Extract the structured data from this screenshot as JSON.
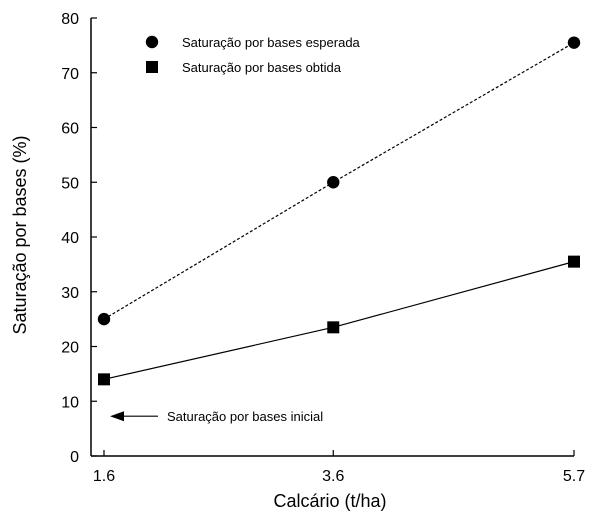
{
  "chart_data": {
    "type": "line",
    "title": "",
    "xlabel": "Calcário (t/ha)",
    "ylabel": "Saturação por bases (%)",
    "x": [
      1.6,
      3.6,
      5.7
    ],
    "x_tick_labels": [
      "1.6",
      "3.6",
      "5.7"
    ],
    "xlim": [
      1.6,
      5.7
    ],
    "ylim": [
      0,
      80
    ],
    "y_ticks": [
      0,
      10,
      20,
      30,
      40,
      50,
      60,
      70,
      80
    ],
    "y_tick_labels": [
      "0",
      "10",
      "20",
      "30",
      "40",
      "50",
      "60",
      "70",
      "80"
    ],
    "grid": false,
    "legend_position": "top-left",
    "series": [
      {
        "name": "Saturação por bases esperada",
        "values": [
          25,
          50,
          75.5
        ],
        "marker": "circle",
        "line_style": "dashed",
        "color": "#000000"
      },
      {
        "name": "Saturação por bases obtida",
        "values": [
          14,
          23.5,
          35.5
        ],
        "marker": "square",
        "line_style": "solid",
        "color": "#000000"
      }
    ],
    "annotations": [
      {
        "text": "Saturação por bases inicial",
        "x": 1.6,
        "y": 8,
        "arrow": "left"
      }
    ]
  }
}
